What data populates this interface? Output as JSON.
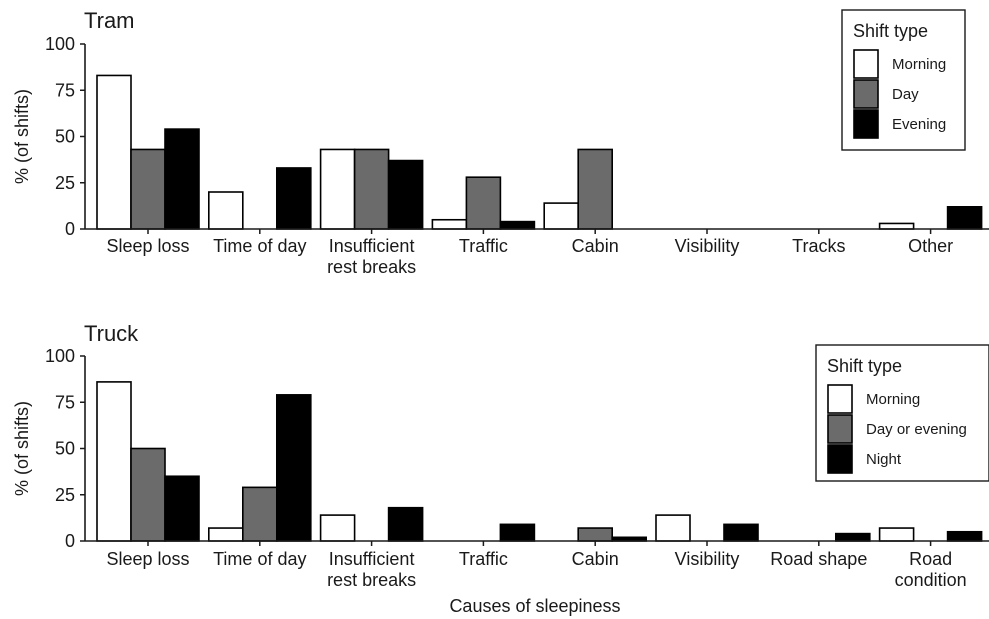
{
  "chart_data": [
    {
      "type": "bar",
      "title": "Tram",
      "ylabel": "% (of shifts)",
      "xlabel": "",
      "ylim": [
        0,
        100
      ],
      "yticks": [
        0,
        25,
        50,
        75,
        100
      ],
      "categories": [
        [
          "Sleep loss"
        ],
        [
          "Time of day"
        ],
        [
          "Insufficient",
          "rest breaks"
        ],
        [
          "Traffic"
        ],
        [
          "Cabin"
        ],
        [
          "Visibility"
        ],
        [
          "Tracks"
        ],
        [
          "Other"
        ]
      ],
      "series": [
        {
          "name": "Morning",
          "values": [
            83,
            20,
            43,
            5,
            14,
            0,
            0,
            3
          ]
        },
        {
          "name": "Day",
          "values": [
            43,
            0,
            43,
            28,
            43,
            0,
            0,
            0
          ]
        },
        {
          "name": "Evening",
          "values": [
            54,
            33,
            37,
            4,
            0,
            0,
            0,
            12
          ]
        }
      ],
      "legend": {
        "title": "Shift type",
        "position": "top-right"
      },
      "colors": [
        "#ffffff",
        "#6b6b6b",
        "#000000"
      ]
    },
    {
      "type": "bar",
      "title": "Truck",
      "ylabel": "% (of shifts)",
      "xlabel": "Causes of sleepiness",
      "ylim": [
        0,
        100
      ],
      "yticks": [
        0,
        25,
        50,
        75,
        100
      ],
      "categories": [
        [
          "Sleep loss"
        ],
        [
          "Time of day"
        ],
        [
          "Insufficient",
          "rest breaks"
        ],
        [
          "Traffic"
        ],
        [
          "Cabin"
        ],
        [
          "Visibility"
        ],
        [
          "Road shape"
        ],
        [
          "Road",
          "condition"
        ]
      ],
      "series": [
        {
          "name": "Morning",
          "values": [
            86,
            7,
            14,
            0,
            0,
            14,
            0,
            7
          ]
        },
        {
          "name": "Day or evening",
          "values": [
            50,
            29,
            0,
            0,
            7,
            0,
            0,
            0
          ]
        },
        {
          "name": "Night",
          "values": [
            35,
            79,
            18,
            9,
            2,
            9,
            4,
            5
          ]
        }
      ],
      "legend": {
        "title": "Shift type",
        "position": "right"
      },
      "colors": [
        "#ffffff",
        "#6b6b6b",
        "#000000"
      ]
    }
  ]
}
